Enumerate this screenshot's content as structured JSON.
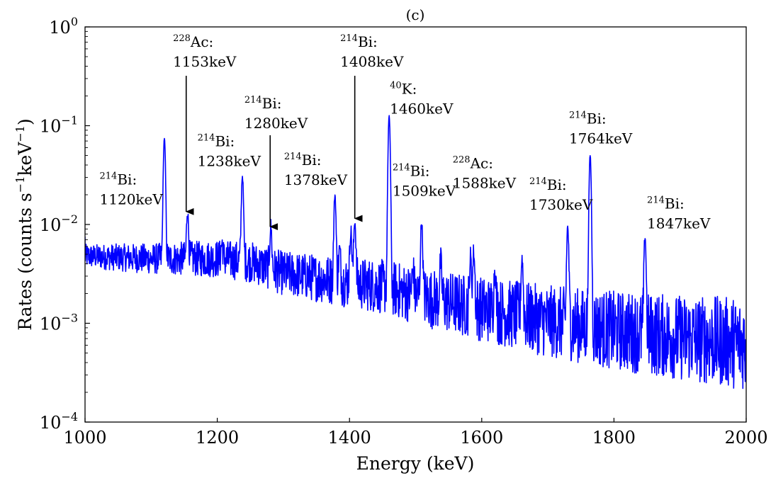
{
  "chart_data": {
    "type": "line",
    "title": "(c)",
    "xlabel": "Energy (keV)",
    "ylabel": "Rates (counts s⁻¹keV⁻¹)",
    "ylabel_parts": {
      "pre": "Rates (counts s",
      "sup1": "−1",
      "mid": "keV",
      "sup2": "−1",
      "post": ")"
    },
    "xlim": [
      1000,
      2000
    ],
    "ylim": [
      0.0001,
      1
    ],
    "yscale": "log",
    "grid": false,
    "x_ticks": [
      "1000",
      "1200",
      "1400",
      "1600",
      "1800",
      "2000"
    ],
    "y_ticks": [
      {
        "value": 1,
        "base": "10",
        "exp": "0"
      },
      {
        "value": 0.1,
        "base": "10",
        "exp": "−1"
      },
      {
        "value": 0.01,
        "base": "10",
        "exp": "−2"
      },
      {
        "value": 0.001,
        "base": "10",
        "exp": "−3"
      },
      {
        "value": 0.0001,
        "base": "10",
        "exp": "−4"
      }
    ],
    "line_color": "#0000ff",
    "continuum": [
      {
        "x": 1000,
        "y": 0.0048
      },
      {
        "x": 1100,
        "y": 0.0045
      },
      {
        "x": 1200,
        "y": 0.0045
      },
      {
        "x": 1250,
        "y": 0.0042
      },
      {
        "x": 1300,
        "y": 0.0032
      },
      {
        "x": 1400,
        "y": 0.0026
      },
      {
        "x": 1460,
        "y": 0.0023
      },
      {
        "x": 1500,
        "y": 0.0019
      },
      {
        "x": 1600,
        "y": 0.0014
      },
      {
        "x": 1700,
        "y": 0.00105
      },
      {
        "x": 1800,
        "y": 0.00085
      },
      {
        "x": 1900,
        "y": 0.00072
      },
      {
        "x": 2000,
        "y": 0.00062
      }
    ],
    "peaks": [
      {
        "x": 1120,
        "y": 0.075
      },
      {
        "x": 1155,
        "y": 0.0135
      },
      {
        "x": 1207,
        "y": 0.0065
      },
      {
        "x": 1238,
        "y": 0.031
      },
      {
        "x": 1281,
        "y": 0.0095
      },
      {
        "x": 1378,
        "y": 0.02
      },
      {
        "x": 1385,
        "y": 0.0055
      },
      {
        "x": 1402,
        "y": 0.0085
      },
      {
        "x": 1408,
        "y": 0.011
      },
      {
        "x": 1460,
        "y": 0.125
      },
      {
        "x": 1496,
        "y": 0.0035
      },
      {
        "x": 1509,
        "y": 0.0105
      },
      {
        "x": 1538,
        "y": 0.0042
      },
      {
        "x": 1583,
        "y": 0.0045
      },
      {
        "x": 1588,
        "y": 0.0052
      },
      {
        "x": 1620,
        "y": 0.0035
      },
      {
        "x": 1661,
        "y": 0.0045
      },
      {
        "x": 1730,
        "y": 0.0095
      },
      {
        "x": 1764,
        "y": 0.05
      },
      {
        "x": 1847,
        "y": 0.0075
      }
    ],
    "annotations": [
      {
        "iso": "214",
        "el": "Bi:",
        "energy": "1120keV",
        "label_x": 1022,
        "label_y": 0.0255,
        "arrow": false
      },
      {
        "iso": "228",
        "el": "Ac:",
        "energy": "1153keV",
        "label_x": 1133,
        "label_y": 0.63,
        "arrow": true,
        "arrow_from": 0.32,
        "arrow_to": 0.0135,
        "arrow_x": 1153
      },
      {
        "iso": "214",
        "el": "Bi:",
        "energy": "1238keV",
        "label_x": 1170,
        "label_y": 0.062,
        "arrow": false
      },
      {
        "iso": "214",
        "el": "Bi:",
        "energy": "1280keV",
        "label_x": 1241,
        "label_y": 0.15,
        "arrow": true,
        "arrow_from": 0.08,
        "arrow_to": 0.0095,
        "arrow_x": 1280
      },
      {
        "iso": "214",
        "el": "Bi:",
        "energy": "1378keV",
        "label_x": 1301,
        "label_y": 0.04,
        "arrow": false
      },
      {
        "iso": "214",
        "el": "Bi:",
        "energy": "1408keV",
        "label_x": 1386,
        "label_y": 0.63,
        "arrow": true,
        "arrow_from": 0.32,
        "arrow_to": 0.0115,
        "arrow_x": 1408
      },
      {
        "iso": "40",
        "el": "K:",
        "energy": "1460keV",
        "label_x": 1461,
        "label_y": 0.21,
        "arrow": false
      },
      {
        "iso": "214",
        "el": "Bi:",
        "energy": "1509keV",
        "label_x": 1465,
        "label_y": 0.031,
        "arrow": false
      },
      {
        "iso": "228",
        "el": "Ac:",
        "energy": "1588keV",
        "label_x": 1556,
        "label_y": 0.037,
        "arrow": false
      },
      {
        "iso": "214",
        "el": "Bi:",
        "energy": "1730keV",
        "label_x": 1672,
        "label_y": 0.0225,
        "arrow": false
      },
      {
        "iso": "214",
        "el": "Bi:",
        "energy": "1764keV",
        "label_x": 1732,
        "label_y": 0.105,
        "arrow": false
      },
      {
        "iso": "214",
        "el": "Bi:",
        "energy": "1847keV",
        "label_x": 1850,
        "label_y": 0.0145,
        "arrow": false
      }
    ]
  }
}
